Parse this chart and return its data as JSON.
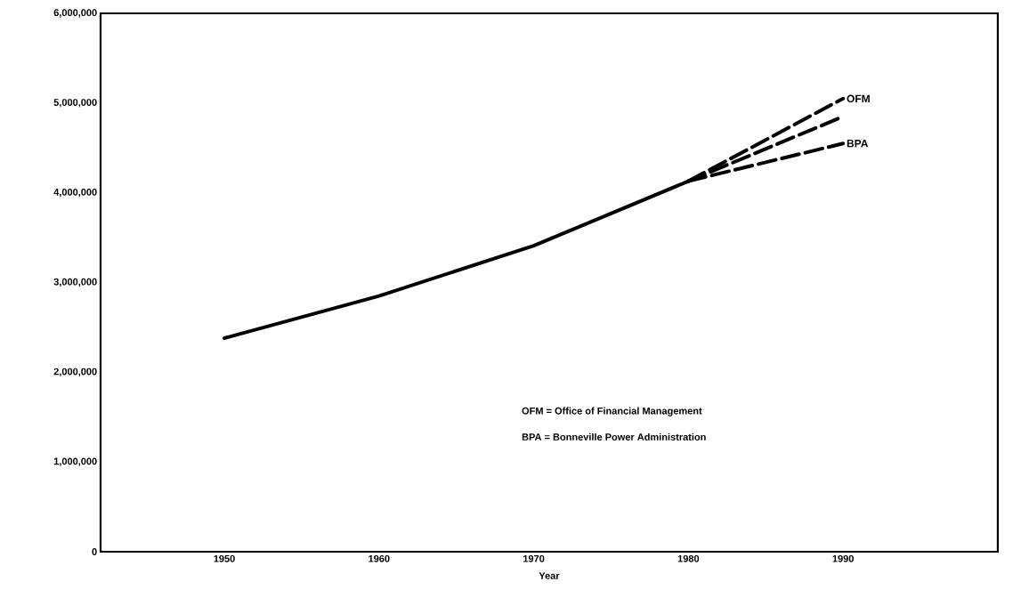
{
  "chart_data": {
    "type": "line",
    "xlabel": "Year",
    "x": [
      1950,
      1960,
      1970,
      1980,
      1990
    ],
    "series": [
      {
        "color": "#000000",
        "line_style": "solid",
        "values": [
          2380000,
          2850000,
          3410000,
          4130000,
          null
        ]
      },
      {
        "name": "OFM",
        "color": "#000000",
        "line_style": "dashed",
        "values": [
          null,
          null,
          null,
          4130000,
          5050000
        ]
      },
      {
        "color": "#000000",
        "line_style": "dashed",
        "values": [
          null,
          null,
          null,
          4130000,
          4850000
        ]
      },
      {
        "name": "BPA",
        "color": "#000000",
        "line_style": "dashed",
        "values": [
          null,
          null,
          null,
          4130000,
          4550000
        ]
      }
    ],
    "xlim": [
      1942,
      2000
    ],
    "xticks": [
      1950,
      1960,
      1970,
      1980,
      1990
    ],
    "ylim": [
      0,
      6000000
    ],
    "yticks": [
      0,
      {
        "value": 1000000,
        "label": "1,000,000"
      },
      {
        "value": 2000000,
        "label": "2,000,000"
      },
      {
        "value": 3000000,
        "label": "3,000,000"
      },
      {
        "value": 4000000,
        "label": "4,000,000"
      },
      {
        "value": 5000000,
        "label": "5,000,000"
      },
      {
        "value": 6000000,
        "label": "6,000,000"
      }
    ],
    "annotations": [
      "OFM = Office of Financial Management",
      "BPA = Bonneville Power Administration"
    ],
    "grid": false,
    "legend": false,
    "marker": "none"
  }
}
